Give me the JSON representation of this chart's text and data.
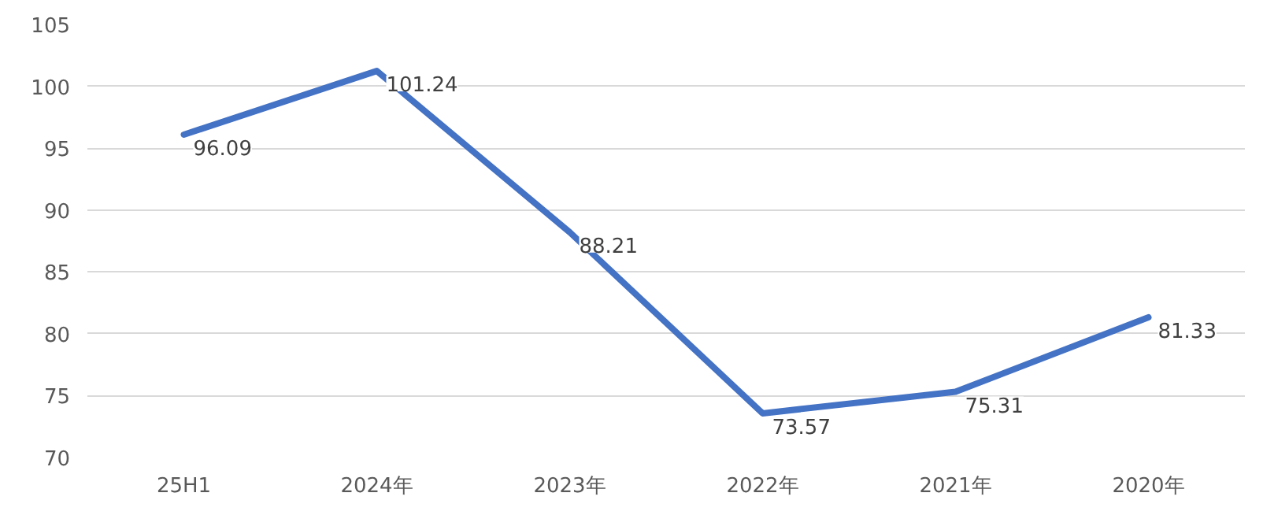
{
  "chart_data": {
    "type": "line",
    "categories": [
      "25H1",
      "2024年",
      "2023年",
      "2022年",
      "2021年",
      "2020年"
    ],
    "series": [
      {
        "color": "#4472c4",
        "values": [
          96.09,
          101.24,
          88.21,
          73.57,
          75.31,
          81.33
        ]
      }
    ],
    "ylim": [
      70,
      105
    ],
    "yticks": [
      70,
      75,
      80,
      85,
      90,
      95,
      100,
      105
    ],
    "grid": "y",
    "data_labels": true,
    "marker": "none",
    "line_style": "solid"
  }
}
